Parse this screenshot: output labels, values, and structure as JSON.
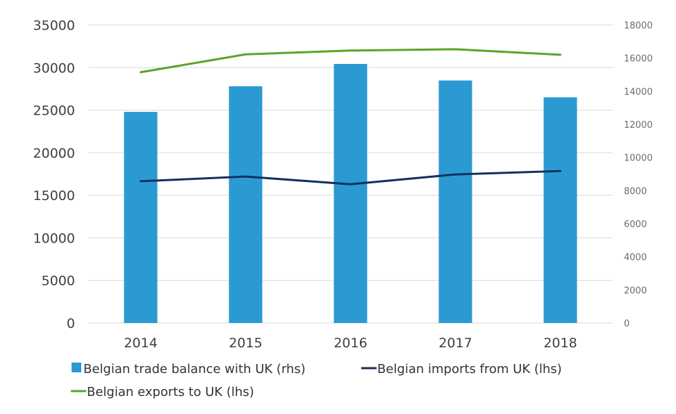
{
  "chart_data": {
    "type": "bar",
    "categories": [
      "2014",
      "2015",
      "2016",
      "2017",
      "2018"
    ],
    "left_axis": {
      "ylim": [
        0,
        35000
      ],
      "ticks": [
        "0",
        "5000",
        "10000",
        "15000",
        "20000",
        "25000",
        "30000",
        "35000"
      ]
    },
    "right_axis": {
      "ylim": [
        0,
        18000
      ],
      "ticks": [
        "0",
        "2000",
        "4000",
        "6000",
        "8000",
        "10000",
        "12000",
        "14000",
        "16000",
        "18000"
      ]
    },
    "grid": true,
    "legend_position": "bottom",
    "series": [
      {
        "name": "Belgian trade balance with UK (rhs)",
        "type": "bar",
        "axis": "right",
        "color": "#2b9ad2",
        "values": [
          12750,
          14300,
          15650,
          14650,
          13630
        ]
      },
      {
        "name": "Belgian imports from UK (lhs)",
        "type": "line",
        "axis": "left",
        "color": "#13305e",
        "values": [
          16650,
          17200,
          16300,
          17450,
          17850
        ]
      },
      {
        "name": "Belgian exports to UK (lhs)",
        "type": "line",
        "axis": "left",
        "color": "#5aa427",
        "values": [
          29450,
          31550,
          32000,
          32150,
          31500
        ]
      }
    ]
  }
}
